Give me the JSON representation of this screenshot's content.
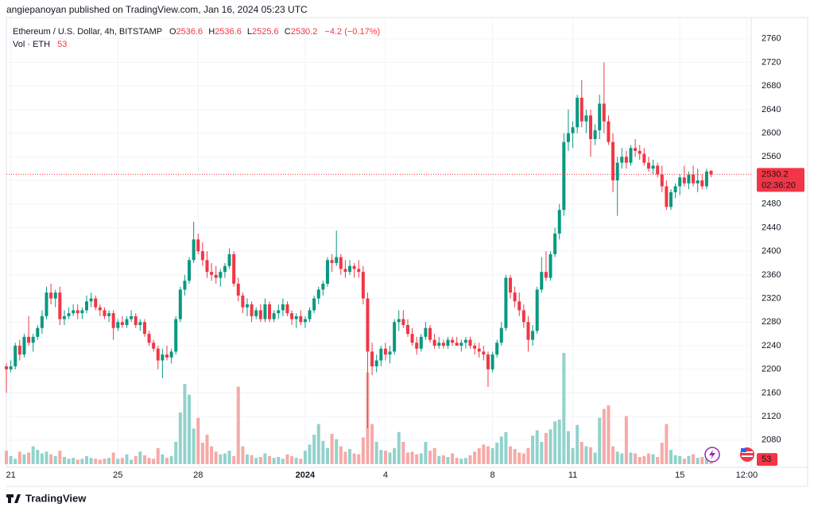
{
  "header": {
    "publisher": "angiepanoyan published on TradingView.com, Jan 16, 2024 05:23 UTC",
    "brand": "TradingView"
  },
  "chart_data": {
    "type": "candlestick",
    "title": "Ethereum / U.S. Dollar, 4h, BITSTAMP",
    "ohlc_letters": [
      "O",
      "H",
      "L",
      "C"
    ],
    "change_label": "−4.2 (−0.17%)",
    "volume_title": "Vol · ETH",
    "countdown": "02:36:20",
    "up_color": "#089981",
    "down_color": "#f23645",
    "volume_up_color": "#92d2cc",
    "volume_down_color": "#f7a9a7",
    "grid": true,
    "ylim": [
      2034,
      2796
    ],
    "yticks": [
      2080,
      2120,
      2160,
      2200,
      2240,
      2280,
      2320,
      2360,
      2400,
      2440,
      2480,
      2520,
      2560,
      2600,
      2640,
      2680,
      2720,
      2760
    ],
    "xlim": [
      0,
      167
    ],
    "xticks": [
      {
        "value": 1,
        "label": "21"
      },
      {
        "value": 25,
        "label": "25"
      },
      {
        "value": 43,
        "label": "28"
      },
      {
        "value": 67,
        "label": "2024"
      },
      {
        "value": 85,
        "label": "4"
      },
      {
        "value": 109,
        "label": "8"
      },
      {
        "value": 127,
        "label": "11"
      },
      {
        "value": 151,
        "label": "15"
      },
      {
        "value": 166,
        "label": "12:00"
      }
    ],
    "open": [
      2205,
      2200,
      2205,
      2240,
      2225,
      2255,
      2245,
      2255,
      2270,
      2290,
      2330,
      2320,
      2330,
      2285,
      2290,
      2295,
      2300,
      2295,
      2300,
      2315,
      2320,
      2305,
      2300,
      2290,
      2295,
      2270,
      2280,
      2275,
      2285,
      2290,
      2275,
      2280,
      2260,
      2245,
      2235,
      2215,
      2225,
      2220,
      2230,
      2285,
      2335,
      2350,
      2385,
      2420,
      2400,
      2385,
      2365,
      2360,
      2355,
      2365,
      2375,
      2395,
      2345,
      2325,
      2305,
      2310,
      2290,
      2300,
      2285,
      2310,
      2285,
      2295,
      2300,
      2310,
      2295,
      2285,
      2290,
      2280,
      2285,
      2300,
      2320,
      2335,
      2345,
      2385,
      2380,
      2390,
      2370,
      2365,
      2375,
      2370,
      2365,
      2320,
      2230,
      2205,
      2215,
      2235,
      2225,
      2230,
      2280,
      2285,
      2275,
      2260,
      2245,
      2235,
      2255,
      2270,
      2250,
      2240,
      2245,
      2240,
      2250,
      2245,
      2240,
      2245,
      2250,
      2240,
      2235,
      2230,
      2225,
      2200,
      2225,
      2245,
      2270,
      2355,
      2330,
      2315,
      2300,
      2280,
      2250,
      2265,
      2335,
      2365,
      2355,
      2395,
      2430,
      2470,
      2585,
      2600,
      2610,
      2660,
      2620,
      2630,
      2590,
      2605,
      2650,
      2620,
      2585,
      2520,
      2550,
      2560,
      2550,
      2575,
      2570,
      2565,
      2550,
      2540,
      2545,
      2530,
      2510,
      2475,
      2500,
      2510,
      2525,
      2515,
      2530,
      2515,
      2520,
      2510,
      2536.6
    ],
    "high": [
      2210,
      2215,
      2245,
      2250,
      2260,
      2290,
      2260,
      2275,
      2300,
      2340,
      2345,
      2335,
      2340,
      2300,
      2305,
      2310,
      2310,
      2305,
      2325,
      2330,
      2325,
      2310,
      2305,
      2300,
      2300,
      2285,
      2290,
      2290,
      2300,
      2295,
      2285,
      2285,
      2265,
      2250,
      2240,
      2235,
      2240,
      2235,
      2290,
      2340,
      2360,
      2390,
      2450,
      2430,
      2415,
      2400,
      2380,
      2375,
      2370,
      2380,
      2405,
      2400,
      2355,
      2330,
      2320,
      2315,
      2305,
      2310,
      2320,
      2315,
      2300,
      2310,
      2320,
      2315,
      2300,
      2295,
      2300,
      2290,
      2305,
      2325,
      2340,
      2350,
      2390,
      2395,
      2435,
      2395,
      2385,
      2385,
      2380,
      2385,
      2375,
      2330,
      2245,
      2225,
      2240,
      2245,
      2240,
      2285,
      2300,
      2300,
      2285,
      2270,
      2255,
      2260,
      2280,
      2275,
      2260,
      2255,
      2250,
      2255,
      2255,
      2255,
      2250,
      2255,
      2255,
      2245,
      2245,
      2240,
      2230,
      2230,
      2250,
      2280,
      2360,
      2360,
      2340,
      2330,
      2310,
      2290,
      2275,
      2340,
      2390,
      2400,
      2400,
      2440,
      2480,
      2600,
      2640,
      2620,
      2665,
      2690,
      2640,
      2640,
      2615,
      2665,
      2720,
      2630,
      2600,
      2560,
      2575,
      2570,
      2580,
      2590,
      2580,
      2575,
      2560,
      2555,
      2550,
      2545,
      2520,
      2505,
      2515,
      2530,
      2545,
      2535,
      2545,
      2540,
      2530,
      2540,
      2536.6
    ],
    "low": [
      2160,
      2195,
      2200,
      2215,
      2220,
      2240,
      2230,
      2250,
      2260,
      2285,
      2310,
      2305,
      2275,
      2275,
      2285,
      2290,
      2285,
      2285,
      2295,
      2305,
      2300,
      2290,
      2285,
      2280,
      2250,
      2265,
      2270,
      2270,
      2280,
      2270,
      2265,
      2255,
      2240,
      2230,
      2200,
      2185,
      2215,
      2210,
      2225,
      2280,
      2325,
      2345,
      2380,
      2395,
      2375,
      2355,
      2350,
      2345,
      2340,
      2355,
      2370,
      2340,
      2315,
      2295,
      2290,
      2280,
      2285,
      2280,
      2280,
      2280,
      2280,
      2285,
      2290,
      2290,
      2275,
      2270,
      2275,
      2270,
      2280,
      2295,
      2310,
      2325,
      2340,
      2365,
      2375,
      2360,
      2355,
      2360,
      2355,
      2355,
      2310,
      2100,
      2190,
      2195,
      2205,
      2215,
      2210,
      2225,
      2265,
      2270,
      2255,
      2240,
      2225,
      2230,
      2250,
      2245,
      2235,
      2235,
      2235,
      2235,
      2240,
      2240,
      2230,
      2235,
      2235,
      2225,
      2220,
      2215,
      2170,
      2195,
      2220,
      2240,
      2265,
      2320,
      2305,
      2290,
      2270,
      2230,
      2240,
      2260,
      2330,
      2350,
      2350,
      2390,
      2420,
      2460,
      2570,
      2575,
      2600,
      2610,
      2600,
      2560,
      2580,
      2590,
      2600,
      2580,
      2500,
      2460,
      2540,
      2540,
      2545,
      2560,
      2555,
      2545,
      2535,
      2530,
      2525,
      2500,
      2470,
      2470,
      2490,
      2495,
      2510,
      2505,
      2510,
      2500,
      2505,
      2505,
      2525.6
    ],
    "close": [
      2200,
      2205,
      2240,
      2225,
      2255,
      2245,
      2255,
      2270,
      2290,
      2330,
      2320,
      2330,
      2285,
      2290,
      2295,
      2300,
      2295,
      2300,
      2315,
      2320,
      2305,
      2300,
      2290,
      2295,
      2270,
      2280,
      2275,
      2285,
      2290,
      2275,
      2280,
      2260,
      2245,
      2235,
      2215,
      2225,
      2220,
      2230,
      2285,
      2335,
      2350,
      2385,
      2420,
      2400,
      2385,
      2365,
      2360,
      2355,
      2365,
      2375,
      2395,
      2345,
      2325,
      2305,
      2310,
      2290,
      2300,
      2285,
      2310,
      2285,
      2295,
      2300,
      2310,
      2295,
      2285,
      2290,
      2280,
      2285,
      2300,
      2320,
      2335,
      2345,
      2385,
      2380,
      2390,
      2370,
      2365,
      2375,
      2370,
      2365,
      2320,
      2230,
      2205,
      2215,
      2235,
      2225,
      2230,
      2280,
      2285,
      2275,
      2260,
      2245,
      2235,
      2255,
      2270,
      2250,
      2240,
      2245,
      2240,
      2250,
      2245,
      2240,
      2245,
      2250,
      2240,
      2235,
      2230,
      2225,
      2200,
      2225,
      2245,
      2270,
      2355,
      2330,
      2315,
      2300,
      2280,
      2250,
      2265,
      2335,
      2365,
      2355,
      2395,
      2430,
      2470,
      2585,
      2600,
      2610,
      2660,
      2620,
      2630,
      2590,
      2605,
      2650,
      2620,
      2585,
      2520,
      2550,
      2560,
      2550,
      2575,
      2570,
      2565,
      2550,
      2540,
      2545,
      2530,
      2510,
      2475,
      2500,
      2510,
      2525,
      2515,
      2530,
      2515,
      2520,
      2510,
      2535,
      2530.2
    ],
    "volume": [
      150,
      90,
      60,
      140,
      110,
      130,
      200,
      160,
      120,
      140,
      110,
      90,
      150,
      80,
      60,
      70,
      50,
      60,
      90,
      70,
      60,
      50,
      60,
      70,
      130,
      60,
      70,
      110,
      50,
      90,
      140,
      100,
      70,
      60,
      180,
      110,
      70,
      90,
      250,
      580,
      900,
      780,
      400,
      520,
      240,
      330,
      200,
      140,
      110,
      120,
      150,
      90,
      870,
      200,
      110,
      100,
      70,
      80,
      120,
      90,
      70,
      80,
      60,
      110,
      90,
      70,
      60,
      150,
      220,
      330,
      450,
      260,
      180,
      340,
      280,
      200,
      140,
      170,
      120,
      110,
      300,
      1030,
      450,
      250,
      160,
      150,
      130,
      180,
      360,
      250,
      130,
      140,
      110,
      120,
      250,
      150,
      180,
      90,
      100,
      80,
      120,
      70,
      60,
      70,
      100,
      140,
      180,
      220,
      200,
      180,
      240,
      310,
      360,
      200,
      170,
      130,
      120,
      180,
      320,
      380,
      250,
      350,
      390,
      480,
      500,
      1250,
      370,
      180,
      440,
      250,
      200,
      190,
      130,
      520,
      620,
      660,
      200,
      140,
      120,
      540,
      130,
      120,
      80,
      90,
      120,
      110,
      80,
      240,
      450,
      160,
      100,
      90,
      60,
      90,
      110,
      70,
      80,
      60,
      53
    ]
  }
}
